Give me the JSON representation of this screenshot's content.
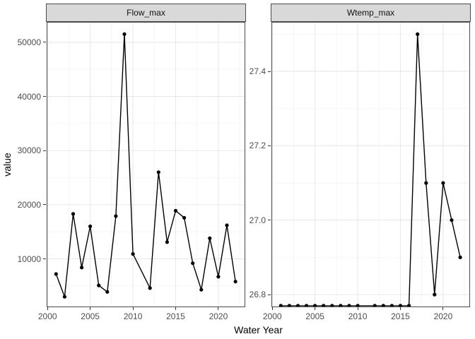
{
  "figure": {
    "xlabel": "Water Year",
    "ylabel": "value"
  },
  "style": {
    "background": "#ffffff",
    "strip_fill": "#d9d9d9",
    "panel_border": "#4a4a4a",
    "grid_major": "#e6e6e6",
    "grid_minor": "#f3f3f3",
    "axis_text_color": "#4d4d4d",
    "tick_color": "#333333",
    "line_color": "#000000",
    "point_color": "#000000"
  },
  "chart_data": [
    {
      "type": "line",
      "facet_label": "Flow_max",
      "x": [
        2001,
        2002,
        2003,
        2004,
        2005,
        2006,
        2007,
        2008,
        2009,
        2010,
        2012,
        2013,
        2014,
        2015,
        2016,
        2017,
        2018,
        2019,
        2020,
        2021,
        2022
      ],
      "values": [
        7200,
        3000,
        18300,
        8400,
        16000,
        5100,
        3900,
        17900,
        51500,
        10900,
        4600,
        26000,
        13100,
        18900,
        17600,
        9200,
        4300,
        13800,
        6700,
        16200,
        5800
      ],
      "note": "no data point for 2011; line connects 2010 to 2012",
      "xlabel": "Water Year",
      "ylabel": "value",
      "x_breaks": [
        2000,
        2005,
        2010,
        2015,
        2020
      ],
      "x_break_labels": [
        "2000",
        "2005",
        "2010",
        "2015",
        "2020"
      ],
      "x_minor": [
        2002.5,
        2007.5,
        2012.5,
        2017.5,
        2022.5
      ],
      "y_breaks": [
        10000,
        20000,
        30000,
        40000,
        50000
      ],
      "y_break_labels": [
        "10000",
        "20000",
        "30000",
        "40000",
        "50000"
      ],
      "y_minor": [
        5000,
        15000,
        25000,
        35000,
        45000
      ],
      "xlim": [
        1999.9,
        2023.15
      ],
      "ylim": [
        1070,
        53760
      ],
      "grid": "major+minor",
      "legend": "none"
    },
    {
      "type": "line",
      "facet_label": "Wtemp_max",
      "x": [
        2001,
        2002,
        2003,
        2004,
        2005,
        2006,
        2007,
        2008,
        2009,
        2010,
        2012,
        2013,
        2014,
        2015,
        2016,
        2017,
        2018,
        2019,
        2020,
        2021,
        2022
      ],
      "values": [
        26.77,
        26.77,
        26.77,
        26.77,
        26.77,
        26.77,
        26.77,
        26.77,
        26.77,
        26.77,
        26.77,
        26.77,
        26.77,
        26.77,
        26.77,
        27.5,
        27.1,
        26.8,
        27.1,
        27.0,
        26.9
      ],
      "note": "no data point for 2011; 2001-2016 flat near bottom of panel",
      "xlabel": "Water Year",
      "ylabel": "value",
      "x_breaks": [
        2000,
        2005,
        2010,
        2015,
        2020
      ],
      "x_break_labels": [
        "2000",
        "2005",
        "2010",
        "2015",
        "2020"
      ],
      "x_minor": [
        2002.5,
        2007.5,
        2012.5,
        2017.5,
        2022.5
      ],
      "y_breaks": [
        26.8,
        27.0,
        27.2,
        27.4
      ],
      "y_break_labels": [
        "26.8",
        "27.0",
        "27.2",
        "27.4"
      ],
      "y_minor": [
        26.9,
        27.1,
        27.3,
        27.5
      ],
      "xlim": [
        1999.9,
        2023.15
      ],
      "ylim": [
        26.766,
        27.533
      ],
      "grid": "major+minor",
      "legend": "none"
    }
  ]
}
